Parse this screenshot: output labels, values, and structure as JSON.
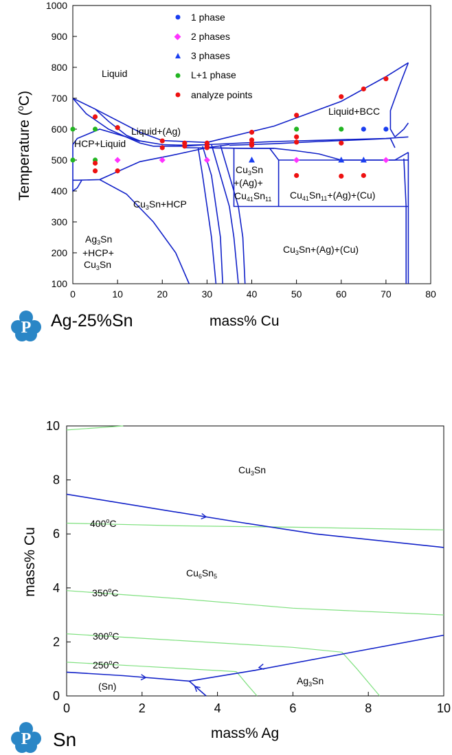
{
  "colors": {
    "boundary": "#1020c8",
    "isotherm": "#7ee07e",
    "phase1": "#1a3ef0",
    "phase2": "#ff33ff",
    "phase3": "#1a3ef0",
    "l1phase": "#22b522",
    "analyze": "#ee1111",
    "logo": "#2a86c6"
  },
  "top_chart": {
    "logo_label": "Ag-25%Sn",
    "xlabel": "mass% Cu",
    "ylabel": "Temperature (°C)",
    "ylabel_parts": {
      "pre": "Temperature (",
      "deg": "o",
      "post": "C)"
    },
    "legend": [
      {
        "label": "1 phase",
        "marker": "circle",
        "color": "#1a3ef0"
      },
      {
        "label": "2 phases",
        "marker": "diamond",
        "color": "#ff33ff"
      },
      {
        "label": "3 phases",
        "marker": "triangle",
        "color": "#1a3ef0"
      },
      {
        "label": "L+1 phase",
        "marker": "circle",
        "color": "#22b522"
      },
      {
        "label": "analyze points",
        "marker": "circle",
        "color": "#ee1111"
      }
    ],
    "region_labels": {
      "liquid": "Liquid",
      "liquid_ag": "Liquid+(Ag)",
      "hcp_liquid": "HCP+Liquid",
      "liquid_bcc": "Liquid+BCC",
      "cu3sn_hcp": {
        "a": "Cu",
        "a_sub": "3",
        "b": "Sn+HCP"
      },
      "cu3sn_ag_cu41sn11": {
        "l1": "Cu",
        "l1_sub": "3",
        "l1b": "Sn",
        "l2": "+(Ag)+",
        "l3": "Cu",
        "l3_sub": "41",
        "l3b": "Sn",
        "l3_sub2": "11"
      },
      "cu41sn11_ag_cu": {
        "a": "Cu",
        "a_sub": "41",
        "b": "Sn",
        "b_sub": "11",
        "c": "+(Ag)+(Cu)"
      },
      "ag3sn_hcp_cu3sn": {
        "l1": "Ag",
        "l1_sub": "3",
        "l1b": "Sn",
        "l2": "+HCP+",
        "l3": "Cu",
        "l3_sub": "3",
        "l3b": "Sn"
      },
      "cu3sn_ag_cu": {
        "a": "Cu",
        "a_sub": "3",
        "b": "Sn+(Ag)+(Cu)"
      }
    }
  },
  "bottom_chart": {
    "logo_label": "Sn",
    "xlabel": "mass% Ag",
    "ylabel": "mass% Cu",
    "region_labels": {
      "cu3sn": {
        "a": "Cu",
        "a_sub": "3",
        "b": "Sn"
      },
      "cu6sn5": {
        "a": "Cu",
        "a_sub": "6",
        "b": "Sn",
        "b_sub": "5"
      },
      "ag3sn": {
        "a": "Ag",
        "a_sub": "3",
        "b": "Sn"
      },
      "sn": "(Sn)"
    },
    "isotherm_labels": [
      {
        "num": "400",
        "deg": "o",
        "unit": "C"
      },
      {
        "num": "350",
        "deg": "o",
        "unit": "C"
      },
      {
        "num": "300",
        "deg": "o",
        "unit": "C"
      },
      {
        "num": "250",
        "deg": "o",
        "unit": "C"
      }
    ]
  },
  "chart_data": [
    {
      "type": "scatter",
      "title": "",
      "xlabel": "mass% Cu",
      "ylabel": "Temperature (oC)",
      "xlim": [
        0,
        80
      ],
      "ylim": [
        100,
        1000
      ],
      "xticks": [
        0,
        10,
        20,
        30,
        40,
        50,
        60,
        70,
        80
      ],
      "yticks": [
        100,
        200,
        300,
        400,
        500,
        600,
        700,
        800,
        900,
        1000
      ],
      "grid": false,
      "legend_position": "top-center",
      "series": [
        {
          "name": "1 phase",
          "marker": "circle",
          "points": [
            [
              65,
              600
            ],
            [
              70,
              600
            ]
          ]
        },
        {
          "name": "2 phases",
          "marker": "diamond",
          "points": [
            [
              10,
              500
            ],
            [
              20,
              500
            ],
            [
              30,
              500
            ],
            [
              50,
              500
            ],
            [
              70,
              500
            ]
          ]
        },
        {
          "name": "3 phases",
          "marker": "triangle",
          "points": [
            [
              40,
              500
            ],
            [
              60,
              500
            ],
            [
              65,
              500
            ]
          ]
        },
        {
          "name": "L+1 phase",
          "marker": "circle",
          "points": [
            [
              0,
              600
            ],
            [
              5,
              600
            ],
            [
              10,
              605
            ],
            [
              50,
              600
            ],
            [
              60,
              600
            ],
            [
              0,
              500
            ],
            [
              5,
              500
            ]
          ]
        },
        {
          "name": "analyze points",
          "marker": "circle",
          "points": [
            [
              5,
              640
            ],
            [
              10,
              605
            ],
            [
              20,
              562
            ],
            [
              20,
              540
            ],
            [
              25,
              555
            ],
            [
              25,
              545
            ],
            [
              30,
              555
            ],
            [
              30,
              545
            ],
            [
              30,
              540
            ],
            [
              40,
              590
            ],
            [
              40,
              565
            ],
            [
              40,
              555
            ],
            [
              40,
              548
            ],
            [
              50,
              645
            ],
            [
              50,
              575
            ],
            [
              50,
              558
            ],
            [
              60,
              705
            ],
            [
              60,
              555
            ],
            [
              65,
              730
            ],
            [
              70,
              763
            ],
            [
              5,
              490
            ],
            [
              5,
              465
            ],
            [
              10,
              465
            ],
            [
              50,
              450
            ],
            [
              60,
              448
            ],
            [
              65,
              450
            ]
          ]
        }
      ],
      "boundaries": [
        [
          [
            0,
            700
          ],
          [
            5,
            665
          ],
          [
            15,
            590
          ],
          [
            20,
            563
          ],
          [
            25,
            560
          ],
          [
            30,
            557
          ]
        ],
        [
          [
            5,
            665
          ],
          [
            8,
            625
          ],
          [
            12,
            580
          ],
          [
            15,
            562
          ],
          [
            20,
            550
          ],
          [
            25,
            548
          ],
          [
            30,
            550
          ]
        ],
        [
          [
            0,
            700
          ],
          [
            3,
            650
          ],
          [
            8,
            600
          ],
          [
            15,
            555
          ],
          [
            18,
            545
          ],
          [
            25,
            545
          ],
          [
            30,
            550
          ]
        ],
        [
          [
            30,
            557
          ],
          [
            45,
            610
          ],
          [
            60,
            690
          ],
          [
            70,
            770
          ],
          [
            75,
            815
          ]
        ],
        [
          [
            30,
            550
          ],
          [
            45,
            560
          ],
          [
            60,
            566
          ],
          [
            70,
            570
          ],
          [
            75,
            575
          ]
        ],
        [
          [
            75,
            815
          ],
          [
            73,
            740
          ],
          [
            71,
            660
          ],
          [
            71,
            600
          ],
          [
            72,
            575
          ]
        ],
        [
          [
            72,
            575
          ],
          [
            74,
            600
          ],
          [
            75,
            620
          ]
        ],
        [
          [
            0,
            435
          ],
          [
            1,
            435
          ],
          [
            6,
            437
          ],
          [
            15,
            495
          ],
          [
            22,
            515
          ],
          [
            30,
            540
          ],
          [
            35,
            550
          ]
        ],
        [
          [
            0,
            435
          ],
          [
            0,
            550
          ],
          [
            1,
            570
          ],
          [
            6,
            600
          ],
          [
            12,
            575
          ],
          [
            15,
            560
          ]
        ],
        [
          [
            0,
            435
          ],
          [
            0,
            400
          ],
          [
            1,
            410
          ],
          [
            2,
            435
          ]
        ],
        [
          [
            6,
            437
          ],
          [
            12,
            390
          ],
          [
            18,
            300
          ],
          [
            23,
            200
          ],
          [
            26,
            100
          ]
        ],
        [
          [
            35,
            548
          ],
          [
            45,
            553
          ],
          [
            55,
            560
          ],
          [
            65,
            566
          ],
          [
            71,
            570
          ],
          [
            72,
            540
          ]
        ],
        [
          [
            25,
            540
          ],
          [
            40,
            538
          ],
          [
            45,
            538
          ],
          [
            50,
            530
          ],
          [
            55,
            520
          ],
          [
            60,
            500
          ],
          [
            72,
            500
          ],
          [
            75,
            525
          ]
        ],
        [
          [
            28,
            540
          ],
          [
            29,
            450
          ],
          [
            30,
            350
          ],
          [
            31,
            250
          ],
          [
            32,
            100
          ]
        ],
        [
          [
            29,
            545
          ],
          [
            31,
            450
          ],
          [
            32,
            350
          ],
          [
            33,
            250
          ],
          [
            33.5,
            100
          ]
        ],
        [
          [
            31,
            550
          ],
          [
            33,
            450
          ],
          [
            35,
            350
          ],
          [
            36,
            250
          ],
          [
            37,
            100
          ]
        ],
        [
          [
            33,
            548
          ],
          [
            35,
            450
          ],
          [
            37,
            350
          ],
          [
            38,
            250
          ],
          [
            38.5,
            100
          ]
        ],
        [
          [
            36,
            538
          ],
          [
            36,
            350
          ],
          [
            46,
            350
          ],
          [
            75,
            350
          ]
        ],
        [
          [
            44,
            538
          ],
          [
            46,
            500
          ],
          [
            46,
            350
          ]
        ],
        [
          [
            46,
            500
          ],
          [
            75,
            500
          ]
        ],
        [
          [
            75,
            525
          ],
          [
            75,
            350
          ],
          [
            75,
            100
          ]
        ],
        [
          [
            74,
            505
          ],
          [
            74.5,
            350
          ],
          [
            74.5,
            100
          ]
        ],
        [
          [
            30,
            540
          ],
          [
            37,
            538
          ],
          [
            45,
            538
          ]
        ]
      ]
    },
    {
      "type": "line",
      "title": "",
      "xlabel": "mass% Ag",
      "ylabel": "mass% Cu",
      "xlim": [
        0,
        10
      ],
      "ylim": [
        0,
        10
      ],
      "xticks": [
        0,
        2,
        4,
        6,
        8,
        10
      ],
      "yticks": [
        0,
        2,
        4,
        6,
        8,
        10
      ],
      "grid": false,
      "boundary_lines": [
        {
          "points": [
            [
              0,
              7.47
            ],
            [
              2.5,
              6.9
            ],
            [
              4.5,
              6.45
            ],
            [
              6.6,
              6.0
            ],
            [
              10,
              5.5
            ]
          ],
          "arrow_at": [
            3.7,
            6.63
          ]
        },
        {
          "points": [
            [
              0,
              0.88
            ],
            [
              1.5,
              0.75
            ],
            [
              3.25,
              0.55
            ]
          ],
          "arrow_at": [
            2.1,
            0.68
          ]
        },
        {
          "points": [
            [
              10,
              2.25
            ],
            [
              7.5,
              1.6
            ],
            [
              5,
              0.95
            ],
            [
              3.25,
              0.55
            ]
          ],
          "arrow_at": [
            5.1,
            1.05
          ]
        },
        {
          "points": [
            [
              3.7,
              0
            ],
            [
              3.25,
              0.55
            ]
          ],
          "arrow_at": [
            3.4,
            0.35
          ]
        }
      ],
      "isotherms": [
        {
          "label": "400oC",
          "points": [
            [
              0,
              6.4
            ],
            [
              3,
              6.3
            ],
            [
              6,
              6.25
            ],
            [
              10,
              6.15
            ]
          ]
        },
        {
          "label": "350oC",
          "points": [
            [
              0,
              3.9
            ],
            [
              3,
              3.6
            ],
            [
              6,
              3.25
            ],
            [
              10,
              3.0
            ]
          ]
        },
        {
          "label": "300oC",
          "points": [
            [
              0,
              2.3
            ],
            [
              3,
              2.05
            ],
            [
              6,
              1.8
            ],
            [
              7.3,
              1.62
            ]
          ]
        },
        {
          "label": "250oC",
          "points": [
            [
              0,
              1.25
            ],
            [
              2,
              1.1
            ],
            [
              4.5,
              0.9
            ]
          ]
        },
        {
          "label": "",
          "points": [
            [
              7.3,
              1.62
            ],
            [
              7.7,
              1.0
            ],
            [
              8.3,
              0
            ]
          ]
        },
        {
          "label": "",
          "points": [
            [
              4.5,
              0.9
            ],
            [
              4.8,
              0.4
            ],
            [
              5.05,
              0
            ]
          ]
        },
        {
          "label": "",
          "points": [
            [
              0,
              9.85
            ],
            [
              1.5,
              10
            ]
          ]
        }
      ]
    }
  ]
}
